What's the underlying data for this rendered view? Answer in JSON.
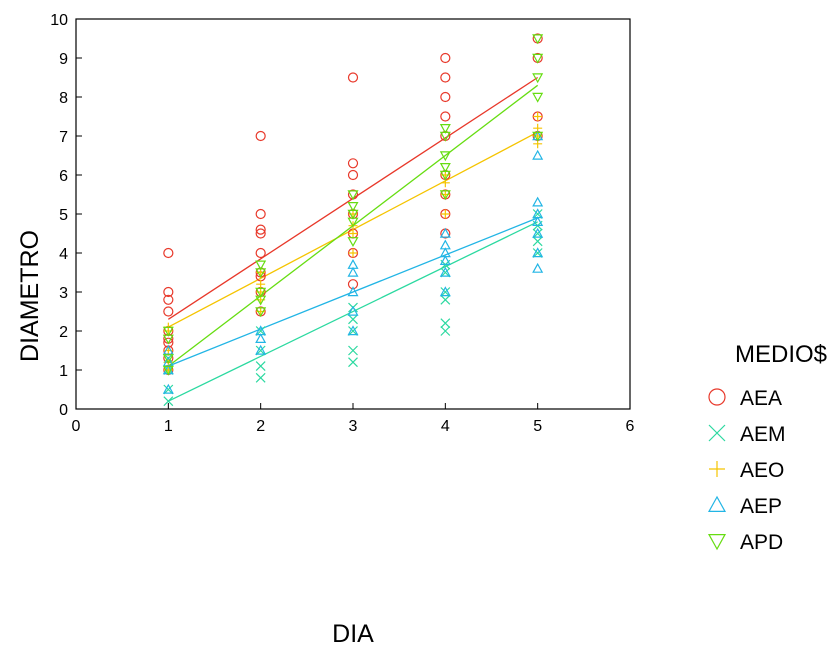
{
  "chart_data": {
    "type": "scatter",
    "xlabel": "DIA",
    "ylabel": "DIAMETRO",
    "xlim": [
      0,
      6
    ],
    "ylim": [
      0,
      10
    ],
    "xticks": [
      "0",
      "1",
      "2",
      "3",
      "4",
      "5",
      "6"
    ],
    "yticks": [
      "0",
      "1",
      "2",
      "3",
      "4",
      "5",
      "6",
      "7",
      "8",
      "9",
      "10"
    ],
    "grid": false,
    "legend": {
      "title": "MEDIO$",
      "placement": "right"
    },
    "series": [
      {
        "name": "AEA",
        "color": "#e8382a",
        "marker": "circle",
        "points": [
          [
            1,
            4.0
          ],
          [
            1,
            3.0
          ],
          [
            1,
            2.8
          ],
          [
            1,
            2.5
          ],
          [
            1,
            2.0
          ],
          [
            1,
            1.8
          ],
          [
            1,
            1.7
          ],
          [
            1,
            1.5
          ],
          [
            1,
            1.3
          ],
          [
            1,
            1.0
          ],
          [
            2,
            7.0
          ],
          [
            2,
            5.0
          ],
          [
            2,
            4.6
          ],
          [
            2,
            4.5
          ],
          [
            2,
            4.0
          ],
          [
            2,
            3.5
          ],
          [
            2,
            3.4
          ],
          [
            2,
            3.0
          ],
          [
            2,
            2.5
          ],
          [
            3,
            8.5
          ],
          [
            3,
            6.3
          ],
          [
            3,
            6.0
          ],
          [
            3,
            5.5
          ],
          [
            3,
            5.0
          ],
          [
            3,
            4.5
          ],
          [
            3,
            4.0
          ],
          [
            3,
            3.2
          ],
          [
            4,
            9.0
          ],
          [
            4,
            8.5
          ],
          [
            4,
            8.0
          ],
          [
            4,
            7.5
          ],
          [
            4,
            7.0
          ],
          [
            4,
            6.0
          ],
          [
            4,
            5.5
          ],
          [
            4,
            5.0
          ],
          [
            4,
            4.5
          ],
          [
            5,
            9.5
          ],
          [
            5,
            9.0
          ],
          [
            5,
            7.5
          ],
          [
            5,
            7.0
          ]
        ],
        "fit": [
          [
            1,
            2.3
          ],
          [
            5,
            8.5
          ]
        ]
      },
      {
        "name": "AEM",
        "color": "#2bd9a0",
        "marker": "x",
        "points": [
          [
            1,
            0.5
          ],
          [
            1,
            0.2
          ],
          [
            1,
            1.0
          ],
          [
            1,
            1.3
          ],
          [
            2,
            2.0
          ],
          [
            2,
            1.5
          ],
          [
            2,
            1.1
          ],
          [
            2,
            0.8
          ],
          [
            3,
            2.6
          ],
          [
            3,
            2.3
          ],
          [
            3,
            2.0
          ],
          [
            3,
            1.5
          ],
          [
            3,
            1.2
          ],
          [
            4,
            3.7
          ],
          [
            4,
            3.5
          ],
          [
            4,
            3.0
          ],
          [
            4,
            2.8
          ],
          [
            4,
            2.2
          ],
          [
            4,
            2.0
          ],
          [
            5,
            5.0
          ],
          [
            5,
            4.7
          ],
          [
            5,
            4.5
          ],
          [
            5,
            4.3
          ],
          [
            5,
            4.0
          ]
        ],
        "fit": [
          [
            1,
            0.2
          ],
          [
            5,
            4.8
          ]
        ]
      },
      {
        "name": "AEO",
        "color": "#f5c400",
        "marker": "plus",
        "points": [
          [
            1,
            2.1
          ],
          [
            1,
            2.0
          ],
          [
            1,
            1.5
          ],
          [
            1,
            1.2
          ],
          [
            1,
            1.0
          ],
          [
            2,
            3.5
          ],
          [
            2,
            3.2
          ],
          [
            2,
            3.0
          ],
          [
            2,
            2.8
          ],
          [
            2,
            2.5
          ],
          [
            3,
            5.0
          ],
          [
            3,
            4.7
          ],
          [
            3,
            4.5
          ],
          [
            3,
            4.0
          ],
          [
            4,
            6.0
          ],
          [
            4,
            5.8
          ],
          [
            4,
            5.5
          ],
          [
            4,
            5.0
          ],
          [
            5,
            7.5
          ],
          [
            5,
            7.2
          ],
          [
            5,
            7.0
          ],
          [
            5,
            6.8
          ]
        ],
        "fit": [
          [
            1,
            2.1
          ],
          [
            5,
            7.1
          ]
        ]
      },
      {
        "name": "AEP",
        "color": "#22b5e5",
        "marker": "triangle-up",
        "points": [
          [
            1,
            1.5
          ],
          [
            1,
            1.2
          ],
          [
            1,
            1.0
          ],
          [
            1,
            0.5
          ],
          [
            2,
            2.0
          ],
          [
            2,
            1.8
          ],
          [
            2,
            1.5
          ],
          [
            3,
            3.7
          ],
          [
            3,
            3.5
          ],
          [
            3,
            3.0
          ],
          [
            3,
            2.5
          ],
          [
            3,
            2.0
          ],
          [
            4,
            4.5
          ],
          [
            4,
            4.2
          ],
          [
            4,
            4.0
          ],
          [
            4,
            3.8
          ],
          [
            4,
            3.5
          ],
          [
            4,
            3.0
          ],
          [
            5,
            7.0
          ],
          [
            5,
            6.5
          ],
          [
            5,
            5.3
          ],
          [
            5,
            5.0
          ],
          [
            5,
            4.8
          ],
          [
            5,
            4.5
          ],
          [
            5,
            4.0
          ],
          [
            5,
            3.6
          ]
        ],
        "fit": [
          [
            1,
            1.1
          ],
          [
            5,
            4.9
          ]
        ]
      },
      {
        "name": "APD",
        "color": "#66dd11",
        "marker": "triangle-down",
        "points": [
          [
            1,
            2.0
          ],
          [
            1,
            1.8
          ],
          [
            1,
            1.3
          ],
          [
            1,
            1.0
          ],
          [
            2,
            3.7
          ],
          [
            2,
            3.5
          ],
          [
            2,
            3.0
          ],
          [
            2,
            2.8
          ],
          [
            2,
            2.5
          ],
          [
            3,
            5.5
          ],
          [
            3,
            5.2
          ],
          [
            3,
            5.0
          ],
          [
            3,
            4.8
          ],
          [
            3,
            4.3
          ],
          [
            4,
            7.2
          ],
          [
            4,
            7.0
          ],
          [
            4,
            6.5
          ],
          [
            4,
            6.2
          ],
          [
            4,
            6.0
          ],
          [
            4,
            5.5
          ],
          [
            5,
            9.5
          ],
          [
            5,
            9.0
          ],
          [
            5,
            8.5
          ],
          [
            5,
            8.0
          ],
          [
            5,
            7.0
          ]
        ],
        "fit": [
          [
            1,
            1.1
          ],
          [
            5,
            8.3
          ]
        ]
      }
    ]
  }
}
